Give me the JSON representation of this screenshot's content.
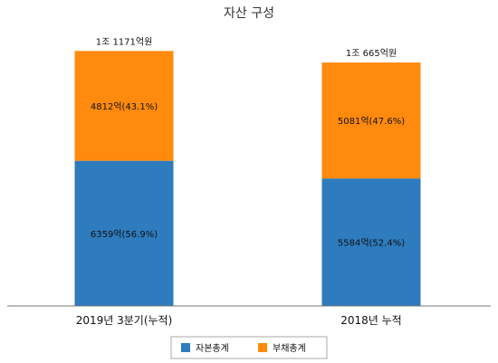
{
  "chart_data": {
    "type": "bar",
    "stacked": true,
    "title": "자산 구성",
    "categories": [
      "2019년 3분기(누적)",
      "2018년 누적"
    ],
    "series": [
      {
        "name": "자본총계",
        "values": [
          6359,
          5584
        ],
        "labels": [
          "6359억(56.9%)",
          "5584억(52.4%)"
        ],
        "color": "#2E7BBE"
      },
      {
        "name": "부채총계",
        "values": [
          4812,
          5081
        ],
        "labels": [
          "4812억(43.1%)",
          "5081억(47.6%)"
        ],
        "color": "#FF8A0D"
      }
    ],
    "totals": [
      11171,
      10665
    ],
    "total_labels": [
      "1조 1171억원",
      "1조 665억원"
    ],
    "ylim": [
      0,
      11500
    ],
    "legend": "bottom"
  }
}
